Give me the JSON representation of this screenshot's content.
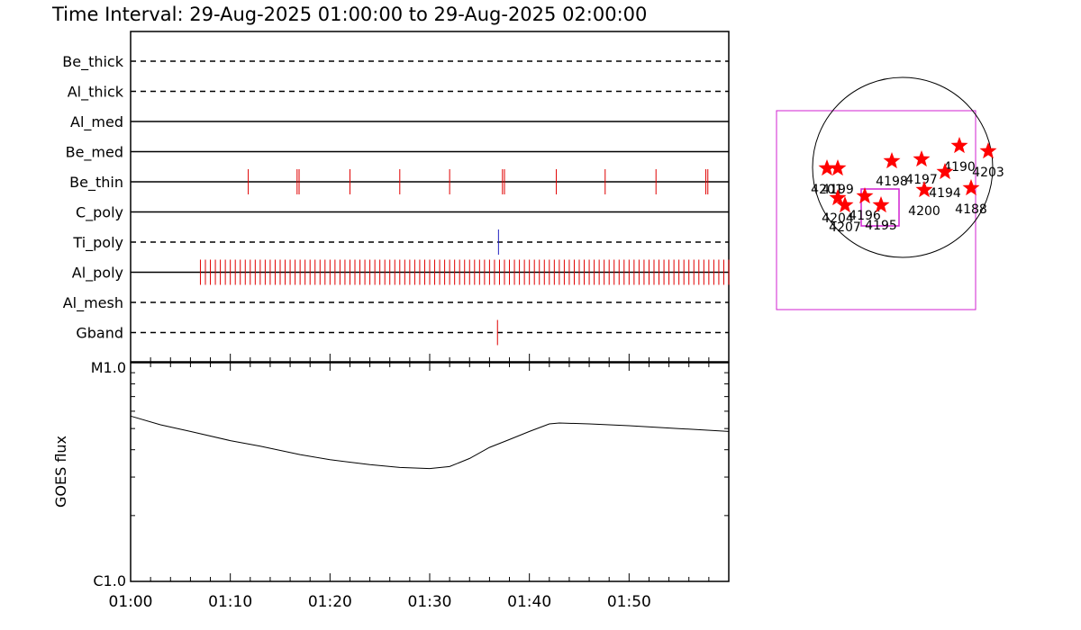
{
  "title": "Time Interval: 29-Aug-2025 01:00:00 to 29-Aug-2025 02:00:00",
  "colors": {
    "event": "#e00000",
    "ti_event": "#2020c0",
    "box": "#d020d0",
    "star": "#ff0000"
  },
  "chart_data": [
    {
      "type": "event-timeline",
      "x_range_minutes": [
        0,
        60
      ],
      "channels": [
        {
          "name": "Be_thick",
          "style": "dashed",
          "events": []
        },
        {
          "name": "Al_thick",
          "style": "dashed",
          "events": []
        },
        {
          "name": "Al_med",
          "style": "solid",
          "events": []
        },
        {
          "name": "Be_med",
          "style": "solid",
          "events": []
        },
        {
          "name": "Be_thin",
          "style": "solid",
          "events": [
            11.8,
            16.7,
            16.9,
            22.0,
            27.0,
            32.0,
            37.3,
            37.5,
            42.7,
            47.6,
            52.7,
            57.7,
            57.9
          ]
        },
        {
          "name": "C_poly",
          "style": "solid",
          "events": []
        },
        {
          "name": "Ti_poly",
          "style": "dashed",
          "events": [
            36.9
          ],
          "event_color": "ti"
        },
        {
          "name": "Al_poly",
          "style": "solid",
          "events": "dense",
          "dense_start": 7.0,
          "dense_end": 60.0,
          "dense_step": 0.5
        },
        {
          "name": "Al_mesh",
          "style": "dashed",
          "events": []
        },
        {
          "name": "Gband",
          "style": "dashed",
          "events": [
            36.8
          ]
        }
      ]
    },
    {
      "type": "line",
      "ylabel": "GOES flux",
      "yscale": "log",
      "ytick_labels": [
        "M1.0",
        "C1.0"
      ],
      "x_tick_labels": [
        "01:00",
        "01:10",
        "01:20",
        "01:30",
        "01:40",
        "01:50"
      ],
      "x_minutes": [
        0,
        3,
        6,
        10,
        13,
        17,
        20,
        24,
        27,
        30,
        32,
        34,
        36,
        38,
        40,
        42,
        43,
        46,
        50,
        55,
        60
      ],
      "y_flux": [
        5.7e-06,
        5.2e-06,
        4.85e-06,
        4.4e-06,
        4.15e-06,
        3.8e-06,
        3.6e-06,
        3.42e-06,
        3.32e-06,
        3.28e-06,
        3.35e-06,
        3.65e-06,
        4.1e-06,
        4.45e-06,
        4.85e-06,
        5.25e-06,
        5.3e-06,
        5.25e-06,
        5.15e-06,
        5e-06,
        4.85e-06
      ]
    }
  ],
  "solar_map": {
    "active_regions": [
      {
        "label": "4201"
      },
      {
        "label": "4199"
      },
      {
        "label": "4204"
      },
      {
        "label": "4207"
      },
      {
        "label": "4196"
      },
      {
        "label": "4195"
      },
      {
        "label": "4198"
      },
      {
        "label": "4197"
      },
      {
        "label": "4190"
      },
      {
        "label": "4203"
      },
      {
        "label": "4194"
      },
      {
        "label": "4200"
      },
      {
        "label": "4188"
      }
    ]
  }
}
